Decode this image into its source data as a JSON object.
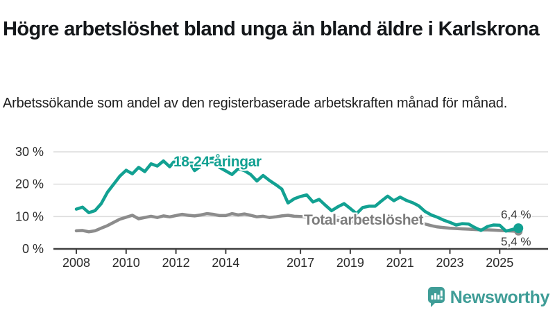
{
  "header": {
    "title": "Högre arbetslöshet bland unga än bland äldre i Karlskrona",
    "subtitle": "Arbetssökande som andel av den registerbaserade arbetskraften månad för månad."
  },
  "chart_data": {
    "type": "line",
    "title": "Högre arbetslöshet bland unga än bland äldre i Karlskrona",
    "subtitle": "Arbetssökande som andel av den registerbaserade arbetskraften månad för månad.",
    "ylabel": "",
    "xlabel": "",
    "ylim": [
      0,
      30
    ],
    "xlim": [
      2007.05,
      2026.3
    ],
    "grid": "horizontal",
    "legend_position": "inline-labels",
    "y_ticks": [
      {
        "label": "30 %",
        "value": 30
      },
      {
        "label": "20 %",
        "value": 20
      },
      {
        "label": "10 %",
        "value": 10
      },
      {
        "label": "0 %",
        "value": 0
      }
    ],
    "x_ticks": [
      {
        "label": "2008",
        "value": 2008
      },
      {
        "label": "2010",
        "value": 2010
      },
      {
        "label": "2012",
        "value": 2012
      },
      {
        "label": "2014",
        "value": 2014
      },
      {
        "label": "2017",
        "value": 2017
      },
      {
        "label": "2019",
        "value": 2019
      },
      {
        "label": "2021",
        "value": 2021
      },
      {
        "label": "2023",
        "value": 2023
      },
      {
        "label": "2025",
        "value": 2025
      }
    ],
    "series": [
      {
        "name": "18-24-åringar",
        "color": "#12a192",
        "end_label": "6,4 %",
        "end_value": 6.4,
        "points": [
          [
            2008.0,
            12.3
          ],
          [
            2008.25,
            12.9
          ],
          [
            2008.5,
            11.2
          ],
          [
            2008.75,
            11.8
          ],
          [
            2009.0,
            14.0
          ],
          [
            2009.25,
            17.5
          ],
          [
            2009.5,
            20.0
          ],
          [
            2009.75,
            22.5
          ],
          [
            2010.0,
            24.3
          ],
          [
            2010.25,
            23.2
          ],
          [
            2010.5,
            25.2
          ],
          [
            2010.75,
            23.9
          ],
          [
            2011.0,
            26.3
          ],
          [
            2011.25,
            25.6
          ],
          [
            2011.5,
            27.2
          ],
          [
            2011.75,
            25.4
          ],
          [
            2012.0,
            27.7
          ],
          [
            2012.25,
            28.3
          ],
          [
            2012.5,
            27.4
          ],
          [
            2012.75,
            24.2
          ],
          [
            2013.0,
            25.6
          ],
          [
            2013.25,
            27.8
          ],
          [
            2013.5,
            28.1
          ],
          [
            2013.75,
            25.2
          ],
          [
            2014.0,
            24.1
          ],
          [
            2014.25,
            23.0
          ],
          [
            2014.5,
            24.8
          ],
          [
            2014.75,
            24.2
          ],
          [
            2015.0,
            23.0
          ],
          [
            2015.25,
            21.0
          ],
          [
            2015.5,
            22.7
          ],
          [
            2015.75,
            21.2
          ],
          [
            2016.0,
            19.9
          ],
          [
            2016.25,
            18.5
          ],
          [
            2016.5,
            14.2
          ],
          [
            2016.75,
            15.5
          ],
          [
            2017.0,
            16.2
          ],
          [
            2017.25,
            16.7
          ],
          [
            2017.5,
            14.5
          ],
          [
            2017.75,
            15.3
          ],
          [
            2018.0,
            13.5
          ],
          [
            2018.25,
            11.8
          ],
          [
            2018.5,
            13.0
          ],
          [
            2018.75,
            14.0
          ],
          [
            2019.0,
            12.5
          ],
          [
            2019.25,
            10.9
          ],
          [
            2019.5,
            12.8
          ],
          [
            2019.75,
            13.2
          ],
          [
            2020.0,
            13.2
          ],
          [
            2020.25,
            14.8
          ],
          [
            2020.5,
            16.3
          ],
          [
            2020.75,
            14.9
          ],
          [
            2021.0,
            16.0
          ],
          [
            2021.25,
            15.0
          ],
          [
            2021.5,
            14.3
          ],
          [
            2021.75,
            13.3
          ],
          [
            2022.0,
            11.6
          ],
          [
            2022.25,
            10.5
          ],
          [
            2022.5,
            9.8
          ],
          [
            2022.75,
            8.9
          ],
          [
            2023.0,
            8.2
          ],
          [
            2023.25,
            7.4
          ],
          [
            2023.5,
            7.8
          ],
          [
            2023.75,
            7.7
          ],
          [
            2024.0,
            6.6
          ],
          [
            2024.25,
            5.7
          ],
          [
            2024.5,
            6.9
          ],
          [
            2024.75,
            7.4
          ],
          [
            2025.0,
            7.3
          ],
          [
            2025.25,
            5.5
          ],
          [
            2025.5,
            6.0
          ],
          [
            2025.75,
            6.4
          ]
        ]
      },
      {
        "name": "Total arbetslöshet",
        "color": "#8c8c8c",
        "end_label": "5,4 %",
        "end_value": 5.4,
        "points": [
          [
            2008.0,
            5.6
          ],
          [
            2008.25,
            5.7
          ],
          [
            2008.5,
            5.3
          ],
          [
            2008.75,
            5.6
          ],
          [
            2009.0,
            6.4
          ],
          [
            2009.25,
            7.2
          ],
          [
            2009.5,
            8.2
          ],
          [
            2009.75,
            9.2
          ],
          [
            2010.0,
            9.8
          ],
          [
            2010.25,
            10.4
          ],
          [
            2010.5,
            9.3
          ],
          [
            2010.75,
            9.7
          ],
          [
            2011.0,
            10.1
          ],
          [
            2011.25,
            9.7
          ],
          [
            2011.5,
            10.2
          ],
          [
            2011.75,
            9.9
          ],
          [
            2012.0,
            10.3
          ],
          [
            2012.25,
            10.7
          ],
          [
            2012.5,
            10.4
          ],
          [
            2012.75,
            10.2
          ],
          [
            2013.0,
            10.5
          ],
          [
            2013.25,
            10.9
          ],
          [
            2013.5,
            10.7
          ],
          [
            2013.75,
            10.3
          ],
          [
            2014.0,
            10.3
          ],
          [
            2014.25,
            10.9
          ],
          [
            2014.5,
            10.5
          ],
          [
            2014.75,
            10.8
          ],
          [
            2015.0,
            10.4
          ],
          [
            2015.25,
            9.9
          ],
          [
            2015.5,
            10.1
          ],
          [
            2015.75,
            9.7
          ],
          [
            2016.0,
            9.9
          ],
          [
            2016.25,
            10.2
          ],
          [
            2016.5,
            10.4
          ],
          [
            2016.75,
            10.1
          ],
          [
            2017.0,
            10.0
          ],
          [
            2017.25,
            9.9
          ],
          [
            2017.5,
            9.7
          ],
          [
            2017.75,
            9.5
          ],
          [
            2018.0,
            9.3
          ],
          [
            2018.25,
            9.0
          ],
          [
            2018.5,
            8.8
          ],
          [
            2018.75,
            8.6
          ],
          [
            2019.0,
            8.5
          ],
          [
            2019.25,
            8.4
          ],
          [
            2019.5,
            8.5
          ],
          [
            2019.75,
            8.7
          ],
          [
            2020.0,
            8.9
          ],
          [
            2020.25,
            9.4
          ],
          [
            2020.5,
            9.9
          ],
          [
            2020.75,
            9.7
          ],
          [
            2021.0,
            9.4
          ],
          [
            2021.25,
            9.1
          ],
          [
            2021.5,
            8.7
          ],
          [
            2021.75,
            8.2
          ],
          [
            2022.0,
            7.7
          ],
          [
            2022.25,
            7.2
          ],
          [
            2022.5,
            6.8
          ],
          [
            2022.75,
            6.6
          ],
          [
            2023.0,
            6.4
          ],
          [
            2023.25,
            6.3
          ],
          [
            2023.5,
            6.2
          ],
          [
            2023.75,
            6.1
          ],
          [
            2024.0,
            6.0
          ],
          [
            2024.25,
            5.9
          ],
          [
            2024.5,
            5.9
          ],
          [
            2024.75,
            5.8
          ],
          [
            2025.0,
            5.7
          ],
          [
            2025.25,
            5.6
          ],
          [
            2025.5,
            5.5
          ],
          [
            2025.75,
            5.4
          ]
        ]
      }
    ]
  },
  "logo": {
    "text": "Newsworthy",
    "color": "#3f9d97"
  },
  "colors": {
    "accent_teal": "#12a192",
    "series_gray": "#8c8c8c",
    "gridline": "#dcdcdc",
    "axis": "#3f3f3f",
    "axis_text": "#2b2b2b",
    "value_label": "#333333"
  }
}
